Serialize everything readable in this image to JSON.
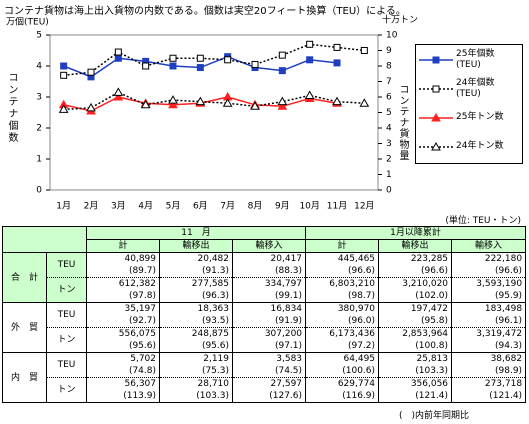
{
  "title": "コンテナ貨物は海上出入貨物の内数である。個数は実空20フィート換算（TEU）による。",
  "chart_data": {
    "type": "line",
    "ylabel": "万個(TEU)",
    "y2label": "十万トン",
    "ylabel_side": "コンテナ個数",
    "y2label_side": "コンテナ貨物量",
    "categories": [
      "1月",
      "2月",
      "3月",
      "4月",
      "5月",
      "6月",
      "7月",
      "8月",
      "9月",
      "10月",
      "11月",
      "12月"
    ],
    "ylim": [
      0,
      5
    ],
    "yticks": [
      0,
      1,
      2,
      3,
      4,
      5
    ],
    "y2lim": [
      0,
      10
    ],
    "y2ticks": [
      0,
      1,
      2,
      3,
      4,
      5,
      6,
      7,
      8,
      9,
      10
    ],
    "series": [
      {
        "name": "25年個数\n(TEU)",
        "color": "#1f3fbf",
        "marker": "square",
        "filled": true,
        "dashed": false,
        "values": [
          4.0,
          3.65,
          4.25,
          4.15,
          4.0,
          3.95,
          4.3,
          3.95,
          3.85,
          4.2,
          4.1,
          null
        ]
      },
      {
        "name": "24年個数\n(TEU)",
        "color": "#000000",
        "marker": "square",
        "filled": false,
        "dashed": true,
        "values": [
          3.7,
          3.8,
          4.45,
          4.0,
          4.25,
          4.25,
          4.2,
          4.05,
          4.35,
          4.7,
          4.6,
          4.5
        ]
      },
      {
        "name": "25年トン数",
        "color": "#ff2020",
        "marker": "triangle",
        "filled": true,
        "dashed": false,
        "axis": "y2",
        "values": [
          5.5,
          5.1,
          6.0,
          5.6,
          5.5,
          5.6,
          6.0,
          5.5,
          5.4,
          5.9,
          5.6,
          null
        ]
      },
      {
        "name": "24年トン数",
        "color": "#000000",
        "marker": "triangle",
        "filled": false,
        "dashed": true,
        "axis": "y2",
        "values": [
          5.2,
          5.3,
          6.3,
          5.5,
          5.8,
          5.7,
          5.6,
          5.4,
          5.7,
          6.1,
          5.7,
          5.6
        ]
      }
    ]
  },
  "table": {
    "unit": "(単位: TEU・トン)",
    "groups": [
      "11　月",
      "1月以降累計"
    ],
    "columns": [
      "計",
      "輸移出",
      "輸移入",
      "計",
      "輸移出",
      "輸移入"
    ],
    "rows": [
      {
        "label": "合　計",
        "units": [
          "TEU",
          "トン"
        ],
        "values": [
          [
            "40,899",
            "20,482",
            "20,417",
            "445,465",
            "223,285",
            "222,180"
          ],
          [
            "612,382",
            "277,585",
            "334,797",
            "6,803,210",
            "3,210,020",
            "3,593,190"
          ]
        ],
        "ratios": [
          [
            "(89.7)",
            "(91.3)",
            "(88.3)",
            "(96.6)",
            "(96.6)",
            "(96.6)"
          ],
          [
            "(97.8)",
            "(96.3)",
            "(99.1)",
            "(98.7)",
            "(102.0)",
            "(95.9)"
          ]
        ]
      },
      {
        "label": "外　貿",
        "units": [
          "TEU",
          "トン"
        ],
        "values": [
          [
            "35,197",
            "18,363",
            "16,834",
            "380,970",
            "197,472",
            "183,498"
          ],
          [
            "556,075",
            "248,875",
            "307,200",
            "6,173,436",
            "2,853,964",
            "3,319,472"
          ]
        ],
        "ratios": [
          [
            "(92.7)",
            "(93.5)",
            "(91.9)",
            "(96.0)",
            "(95.8)",
            "(96.1)"
          ],
          [
            "(95.6)",
            "(95.6)",
            "(97.1)",
            "(97.2)",
            "(100.8)",
            "(94.3)"
          ]
        ]
      },
      {
        "label": "内　貿",
        "units": [
          "TEU",
          "トン"
        ],
        "values": [
          [
            "5,702",
            "2,119",
            "3,583",
            "64,495",
            "25,813",
            "38,682"
          ],
          [
            "56,307",
            "28,710",
            "27,597",
            "629,774",
            "356,056",
            "273,718"
          ]
        ],
        "ratios": [
          [
            "(74.8)",
            "(75.3)",
            "(74.5)",
            "(100.6)",
            "(103.3)",
            "(98.9)"
          ],
          [
            "(113.9)",
            "(103.3)",
            "(127.6)",
            "(116.9)",
            "(121.4)",
            "(121.4)"
          ]
        ]
      }
    ],
    "note": "(　)内前年同期比"
  }
}
